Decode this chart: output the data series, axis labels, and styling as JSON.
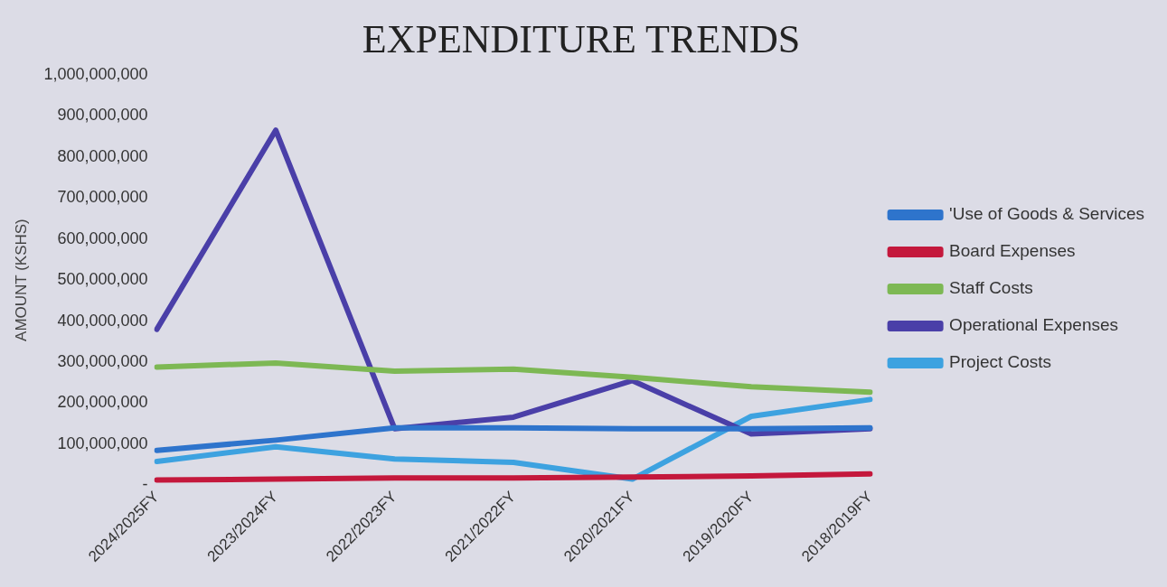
{
  "chart_data": {
    "type": "line",
    "title": "EXPENDITURE TRENDS",
    "ylabel": "AMOUNT (KSHS)",
    "categories": [
      "2024/2025FY",
      "2023/2024FY",
      "2022/2023FY",
      "2021/2022FY",
      "2020/2021FY",
      "2019/2020FY",
      "2018/2019FY"
    ],
    "series": [
      {
        "name": "'Use of Goods & Services",
        "color": "#2e74cc",
        "values": [
          85000000,
          110000000,
          140000000,
          140000000,
          138000000,
          138000000,
          140000000
        ]
      },
      {
        "name": "Board Expenses",
        "color": "#c4183c",
        "values": [
          13000000,
          15000000,
          18000000,
          18000000,
          20000000,
          23000000,
          28000000
        ]
      },
      {
        "name": "Staff Costs",
        "color": "#7db854",
        "values": [
          288000000,
          298000000,
          278000000,
          283000000,
          263000000,
          240000000,
          227000000
        ]
      },
      {
        "name": "Operational Expenses",
        "color": "#4a3fa8",
        "values": [
          380000000,
          865000000,
          138000000,
          166000000,
          255000000,
          125000000,
          138000000
        ]
      },
      {
        "name": "Project Costs",
        "color": "#3da2e0",
        "values": [
          58000000,
          94000000,
          64000000,
          56000000,
          15000000,
          168000000,
          209000000
        ]
      }
    ],
    "ylim": [
      0,
      1000000000
    ],
    "yticks": [
      {
        "value": 0,
        "label": "-"
      },
      {
        "value": 100000000,
        "label": "100,000,000"
      },
      {
        "value": 200000000,
        "label": "200,000,000"
      },
      {
        "value": 300000000,
        "label": "300,000,000"
      },
      {
        "value": 400000000,
        "label": "400,000,000"
      },
      {
        "value": 500000000,
        "label": "500,000,000"
      },
      {
        "value": 600000000,
        "label": "600,000,000"
      },
      {
        "value": 700000000,
        "label": "700,000,000"
      },
      {
        "value": 800000000,
        "label": "800,000,000"
      },
      {
        "value": 900000000,
        "label": "900,000,000"
      },
      {
        "value": 1000000000,
        "label": "1,000,000,000"
      }
    ],
    "grid": false,
    "legend": "right",
    "marker": "none",
    "line_style": "solid"
  }
}
